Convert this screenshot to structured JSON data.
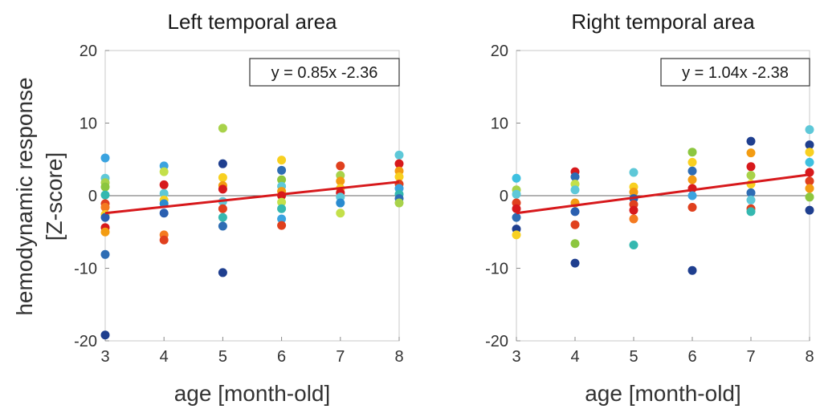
{
  "figure": {
    "ylabel_line1": "hemodynamic response",
    "ylabel_line2": "[Z-score]"
  },
  "chart_data": [
    {
      "type": "scatter",
      "title": "Left temporal area",
      "xlabel": "age [month-old]",
      "ylabel": "hemodynamic response [Z-score]",
      "xlim": [
        3,
        8
      ],
      "ylim": [
        -20,
        20
      ],
      "xticks": [
        "3",
        "4",
        "5",
        "6",
        "7",
        "8"
      ],
      "yticks": [
        "20",
        "10",
        "0",
        "-10",
        "-20"
      ],
      "zero_line": true,
      "regression": {
        "equation": "y = 0.85x -2.36",
        "x": [
          3,
          8
        ],
        "y": [
          -2.4,
          1.9
        ],
        "color": "#d7191c"
      },
      "points": [
        {
          "x": 3,
          "y": 5.2,
          "color": "#3aa3e0"
        },
        {
          "x": 3,
          "y": 2.4,
          "color": "#5ec8d8"
        },
        {
          "x": 3,
          "y": 1.8,
          "color": "#a8d24a"
        },
        {
          "x": 3,
          "y": 1.2,
          "color": "#8cc63f"
        },
        {
          "x": 3,
          "y": 0.1,
          "color": "#35b8b0"
        },
        {
          "x": 3,
          "y": -1.1,
          "color": "#e0401e"
        },
        {
          "x": 3,
          "y": -1.6,
          "color": "#f47a20"
        },
        {
          "x": 3,
          "y": -2.6,
          "color": "#f8d020"
        },
        {
          "x": 3,
          "y": -3.0,
          "color": "#2a5fb0"
        },
        {
          "x": 3,
          "y": -4.4,
          "color": "#d7191c"
        },
        {
          "x": 3,
          "y": -5.0,
          "color": "#f39c12"
        },
        {
          "x": 3,
          "y": -8.1,
          "color": "#2e6db4"
        },
        {
          "x": 3,
          "y": -19.2,
          "color": "#1f3f8f"
        },
        {
          "x": 4,
          "y": 4.1,
          "color": "#3aa3e0"
        },
        {
          "x": 4,
          "y": 3.3,
          "color": "#c4e04a"
        },
        {
          "x": 4,
          "y": 1.5,
          "color": "#d7191c"
        },
        {
          "x": 4,
          "y": 0.3,
          "color": "#5ec8d8"
        },
        {
          "x": 4,
          "y": -0.6,
          "color": "#f8d020"
        },
        {
          "x": 4,
          "y": -1.1,
          "color": "#2a8bd0"
        },
        {
          "x": 4,
          "y": -2.4,
          "color": "#2a5fb0"
        },
        {
          "x": 4,
          "y": -5.4,
          "color": "#f47a20"
        },
        {
          "x": 4,
          "y": -6.1,
          "color": "#e0401e"
        },
        {
          "x": 5,
          "y": 9.3,
          "color": "#a8d24a"
        },
        {
          "x": 5,
          "y": 4.4,
          "color": "#1f3f8f"
        },
        {
          "x": 5,
          "y": 2.5,
          "color": "#f8d020"
        },
        {
          "x": 5,
          "y": 1.4,
          "color": "#f39c12"
        },
        {
          "x": 5,
          "y": 0.9,
          "color": "#d7191c"
        },
        {
          "x": 5,
          "y": -0.8,
          "color": "#5ec8d8"
        },
        {
          "x": 5,
          "y": -1.8,
          "color": "#e0401e"
        },
        {
          "x": 5,
          "y": -3.0,
          "color": "#35b8b0"
        },
        {
          "x": 5,
          "y": -4.2,
          "color": "#2e6db4"
        },
        {
          "x": 5,
          "y": -10.6,
          "color": "#1f3f8f"
        },
        {
          "x": 6,
          "y": 4.9,
          "color": "#f8d020"
        },
        {
          "x": 6,
          "y": 3.5,
          "color": "#2e6db4"
        },
        {
          "x": 6,
          "y": 2.2,
          "color": "#8cc63f"
        },
        {
          "x": 6,
          "y": 1.3,
          "color": "#5ec8d8"
        },
        {
          "x": 6,
          "y": 0.6,
          "color": "#f39c12"
        },
        {
          "x": 6,
          "y": 0.0,
          "color": "#d7191c"
        },
        {
          "x": 6,
          "y": -0.9,
          "color": "#c4e04a"
        },
        {
          "x": 6,
          "y": -1.8,
          "color": "#35b8b0"
        },
        {
          "x": 6,
          "y": -3.2,
          "color": "#3aa3e0"
        },
        {
          "x": 6,
          "y": -4.1,
          "color": "#e0401e"
        },
        {
          "x": 7,
          "y": 4.1,
          "color": "#e0401e"
        },
        {
          "x": 7,
          "y": 2.8,
          "color": "#a8d24a"
        },
        {
          "x": 7,
          "y": 2.0,
          "color": "#f39c12"
        },
        {
          "x": 7,
          "y": 1.0,
          "color": "#f8d020"
        },
        {
          "x": 7,
          "y": 0.4,
          "color": "#d7191c"
        },
        {
          "x": 7,
          "y": -0.2,
          "color": "#5ec8d8"
        },
        {
          "x": 7,
          "y": -1.0,
          "color": "#2a8bd0"
        },
        {
          "x": 7,
          "y": -2.4,
          "color": "#c4e04a"
        },
        {
          "x": 8,
          "y": 5.6,
          "color": "#5ec8d8"
        },
        {
          "x": 8,
          "y": 4.4,
          "color": "#d7191c"
        },
        {
          "x": 8,
          "y": 3.4,
          "color": "#f39c12"
        },
        {
          "x": 8,
          "y": 2.6,
          "color": "#f8d020"
        },
        {
          "x": 8,
          "y": 1.6,
          "color": "#e0401e"
        },
        {
          "x": 8,
          "y": 1.0,
          "color": "#3aa3e0"
        },
        {
          "x": 8,
          "y": 0.2,
          "color": "#35b8b0"
        },
        {
          "x": 8,
          "y": -0.4,
          "color": "#2e6db4"
        },
        {
          "x": 8,
          "y": -1.0,
          "color": "#a8d24a"
        }
      ]
    },
    {
      "type": "scatter",
      "title": "Right temporal area",
      "xlabel": "age [month-old]",
      "ylabel": "",
      "xlim": [
        3,
        8
      ],
      "ylim": [
        -20,
        20
      ],
      "xticks": [
        "3",
        "4",
        "5",
        "6",
        "7",
        "8"
      ],
      "yticks": [
        "20",
        "10",
        "0",
        "-10",
        "-20"
      ],
      "zero_line": true,
      "regression": {
        "equation": "y = 1.04x -2.38",
        "x": [
          3,
          8
        ],
        "y": [
          -2.4,
          2.9
        ],
        "color": "#d7191c"
      },
      "points": [
        {
          "x": 3,
          "y": 2.4,
          "color": "#3ec0e0"
        },
        {
          "x": 3,
          "y": 0.8,
          "color": "#a8d24a"
        },
        {
          "x": 3,
          "y": 0.2,
          "color": "#5ec8d8"
        },
        {
          "x": 3,
          "y": -1.0,
          "color": "#e0401e"
        },
        {
          "x": 3,
          "y": -1.8,
          "color": "#d7191c"
        },
        {
          "x": 3,
          "y": -3.0,
          "color": "#2e6db4"
        },
        {
          "x": 3,
          "y": -4.6,
          "color": "#1f3f8f"
        },
        {
          "x": 3,
          "y": -5.4,
          "color": "#f8d020"
        },
        {
          "x": 4,
          "y": 3.3,
          "color": "#d7191c"
        },
        {
          "x": 4,
          "y": 2.6,
          "color": "#2e6db4"
        },
        {
          "x": 4,
          "y": 1.6,
          "color": "#c4e04a"
        },
        {
          "x": 4,
          "y": 0.8,
          "color": "#5ec8d8"
        },
        {
          "x": 4,
          "y": -1.0,
          "color": "#f39c12"
        },
        {
          "x": 4,
          "y": -2.2,
          "color": "#2a5fb0"
        },
        {
          "x": 4,
          "y": -4.0,
          "color": "#e0401e"
        },
        {
          "x": 4,
          "y": -6.6,
          "color": "#8cc63f"
        },
        {
          "x": 4,
          "y": -9.3,
          "color": "#1f3f8f"
        },
        {
          "x": 5,
          "y": 3.2,
          "color": "#5ec8d8"
        },
        {
          "x": 5,
          "y": 1.2,
          "color": "#f8d020"
        },
        {
          "x": 5,
          "y": 0.5,
          "color": "#f39c12"
        },
        {
          "x": 5,
          "y": -0.4,
          "color": "#2a5fb0"
        },
        {
          "x": 5,
          "y": -1.2,
          "color": "#e0401e"
        },
        {
          "x": 5,
          "y": -2.0,
          "color": "#d7191c"
        },
        {
          "x": 5,
          "y": -3.2,
          "color": "#f47a20"
        },
        {
          "x": 5,
          "y": -6.8,
          "color": "#35b8b0"
        },
        {
          "x": 6,
          "y": 6.0,
          "color": "#8cc63f"
        },
        {
          "x": 6,
          "y": 4.6,
          "color": "#f8d020"
        },
        {
          "x": 6,
          "y": 3.4,
          "color": "#2e6db4"
        },
        {
          "x": 6,
          "y": 2.2,
          "color": "#f39c12"
        },
        {
          "x": 6,
          "y": 1.0,
          "color": "#d7191c"
        },
        {
          "x": 6,
          "y": 0.0,
          "color": "#3aa3e0"
        },
        {
          "x": 6,
          "y": -1.6,
          "color": "#e0401e"
        },
        {
          "x": 6,
          "y": -10.3,
          "color": "#1f3f8f"
        },
        {
          "x": 7,
          "y": 7.5,
          "color": "#1f3f8f"
        },
        {
          "x": 7,
          "y": 5.9,
          "color": "#f39c12"
        },
        {
          "x": 7,
          "y": 4.0,
          "color": "#d7191c"
        },
        {
          "x": 7,
          "y": 2.8,
          "color": "#a8d24a"
        },
        {
          "x": 7,
          "y": 1.6,
          "color": "#f8d020"
        },
        {
          "x": 7,
          "y": 0.4,
          "color": "#2e6db4"
        },
        {
          "x": 7,
          "y": -0.6,
          "color": "#5ec8d8"
        },
        {
          "x": 7,
          "y": -1.8,
          "color": "#e0401e"
        },
        {
          "x": 7,
          "y": -2.2,
          "color": "#35b8b0"
        },
        {
          "x": 8,
          "y": 9.1,
          "color": "#5ec8d8"
        },
        {
          "x": 8,
          "y": 7.0,
          "color": "#1f3f8f"
        },
        {
          "x": 8,
          "y": 6.0,
          "color": "#f8d020"
        },
        {
          "x": 8,
          "y": 4.6,
          "color": "#3ec0e0"
        },
        {
          "x": 8,
          "y": 3.2,
          "color": "#d7191c"
        },
        {
          "x": 8,
          "y": 2.0,
          "color": "#e0401e"
        },
        {
          "x": 8,
          "y": 1.0,
          "color": "#f39c12"
        },
        {
          "x": 8,
          "y": -0.2,
          "color": "#8cc63f"
        },
        {
          "x": 8,
          "y": -2.0,
          "color": "#1f3f8f"
        }
      ]
    }
  ]
}
